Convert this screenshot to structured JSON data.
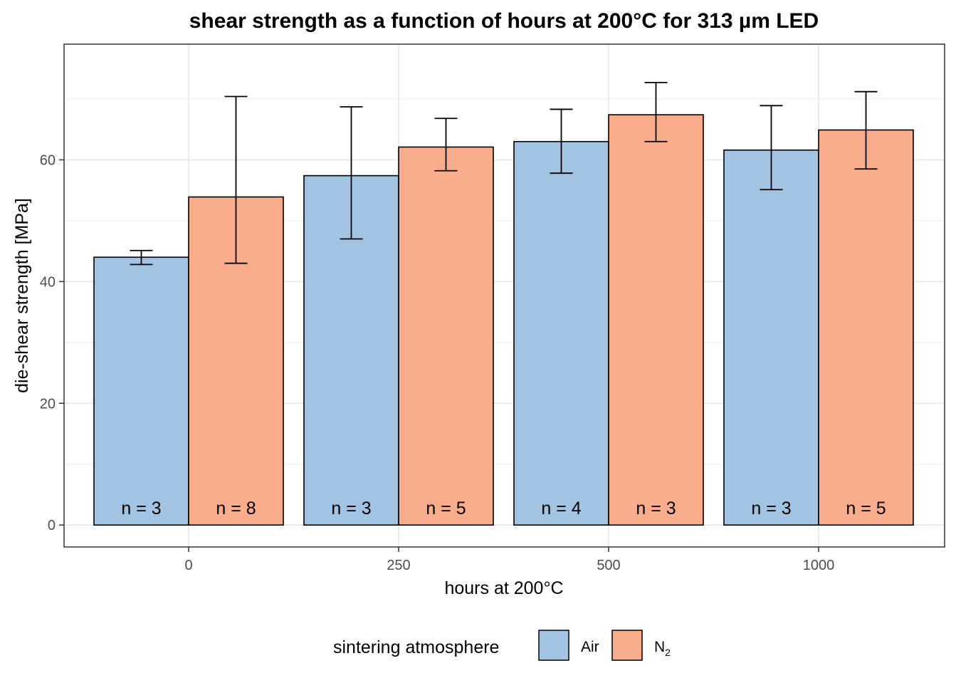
{
  "chart_data": {
    "type": "bar",
    "title": "shear strength as a function of hours at 200°C for 313 µm LED",
    "xlabel": "hours at 200°C",
    "ylabel": "die-shear strength [MPa]",
    "categories": [
      "0",
      "250",
      "500",
      "1000"
    ],
    "ylim": [
      -3.6,
      79
    ],
    "yticks": [
      0,
      20,
      40,
      60
    ],
    "grid": true,
    "legend": {
      "title": "sintering atmosphere",
      "position": "bottom",
      "subscript_suffix": "2"
    },
    "series": [
      {
        "name": "Air",
        "color": "#a2c4e2",
        "values": [
          44.0,
          57.4,
          63.0,
          61.6
        ],
        "err_low": [
          42.8,
          47.0,
          57.8,
          55.1
        ],
        "err_high": [
          45.1,
          68.7,
          68.3,
          68.9
        ],
        "n_labels": [
          "n = 3",
          "n = 3",
          "n = 4",
          "n = 3"
        ]
      },
      {
        "name": "N",
        "color": "#f9ad8c",
        "values": [
          53.9,
          62.1,
          67.4,
          64.9
        ],
        "err_low": [
          43.0,
          58.2,
          63.0,
          58.5
        ],
        "err_high": [
          70.4,
          66.8,
          72.7,
          71.2
        ],
        "n_labels": [
          "n = 8",
          "n = 5",
          "n = 3",
          "n = 5"
        ]
      }
    ]
  }
}
